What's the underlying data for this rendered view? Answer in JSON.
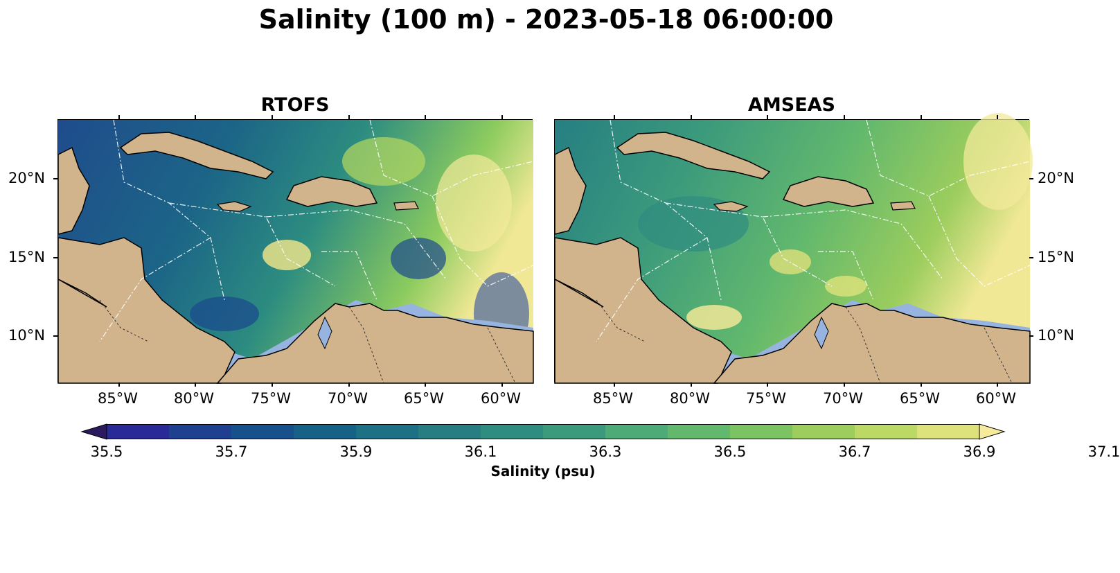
{
  "title": "Salinity (100 m) - 2023-05-18 06:00:00",
  "panels": [
    {
      "title": "RTOFS"
    },
    {
      "title": "AMSEAS"
    }
  ],
  "axes": {
    "lat_ticks": [
      "20°N",
      "15°N",
      "10°N"
    ],
    "lon_ticks": [
      "85°W",
      "80°W",
      "75°W",
      "70°W",
      "65°W",
      "60°W"
    ]
  },
  "colorbar": {
    "label": "Salinity (psu)",
    "tick_labels": [
      "35.5",
      "35.7",
      "35.9",
      "36.1",
      "36.3",
      "36.5",
      "36.7",
      "36.9",
      "37.1"
    ],
    "colors": [
      "#2c1a5e",
      "#2a2a96",
      "#1f3f8f",
      "#17508a",
      "#176187",
      "#1d7184",
      "#267e82",
      "#2f8c80",
      "#3c9a7c",
      "#4eaa76",
      "#62b86d",
      "#7cc462",
      "#9ccd5d",
      "#bcd865",
      "#dde27c",
      "#f5eb9a"
    ],
    "extend": "both"
  },
  "colors": {
    "land": "#d2b48c",
    "shelf": "#97b4e0",
    "coast": "#000000"
  },
  "chart_data": {
    "type": "heatmap",
    "title": "Salinity (100 m) - 2023-05-18 06:00:00",
    "variable": "Salinity",
    "units": "psu",
    "depth": "100 m",
    "valid_time": "2023-05-18 06:00:00",
    "lon_range": [
      -89,
      -58
    ],
    "lat_range": [
      7,
      24
    ],
    "colorbar_range": [
      35.5,
      37.1
    ],
    "colorbar_step": 0.1,
    "panels": [
      {
        "model": "RTOFS",
        "dominant_range": [
          35.6,
          36.3
        ],
        "max_region": "northeast near 20°N 60°W",
        "max_approx": 37.1
      },
      {
        "model": "AMSEAS",
        "dominant_range": [
          36.2,
          36.8
        ],
        "max_region": "northeast near 22°N 60°W",
        "max_approx": 37.1
      }
    ]
  }
}
